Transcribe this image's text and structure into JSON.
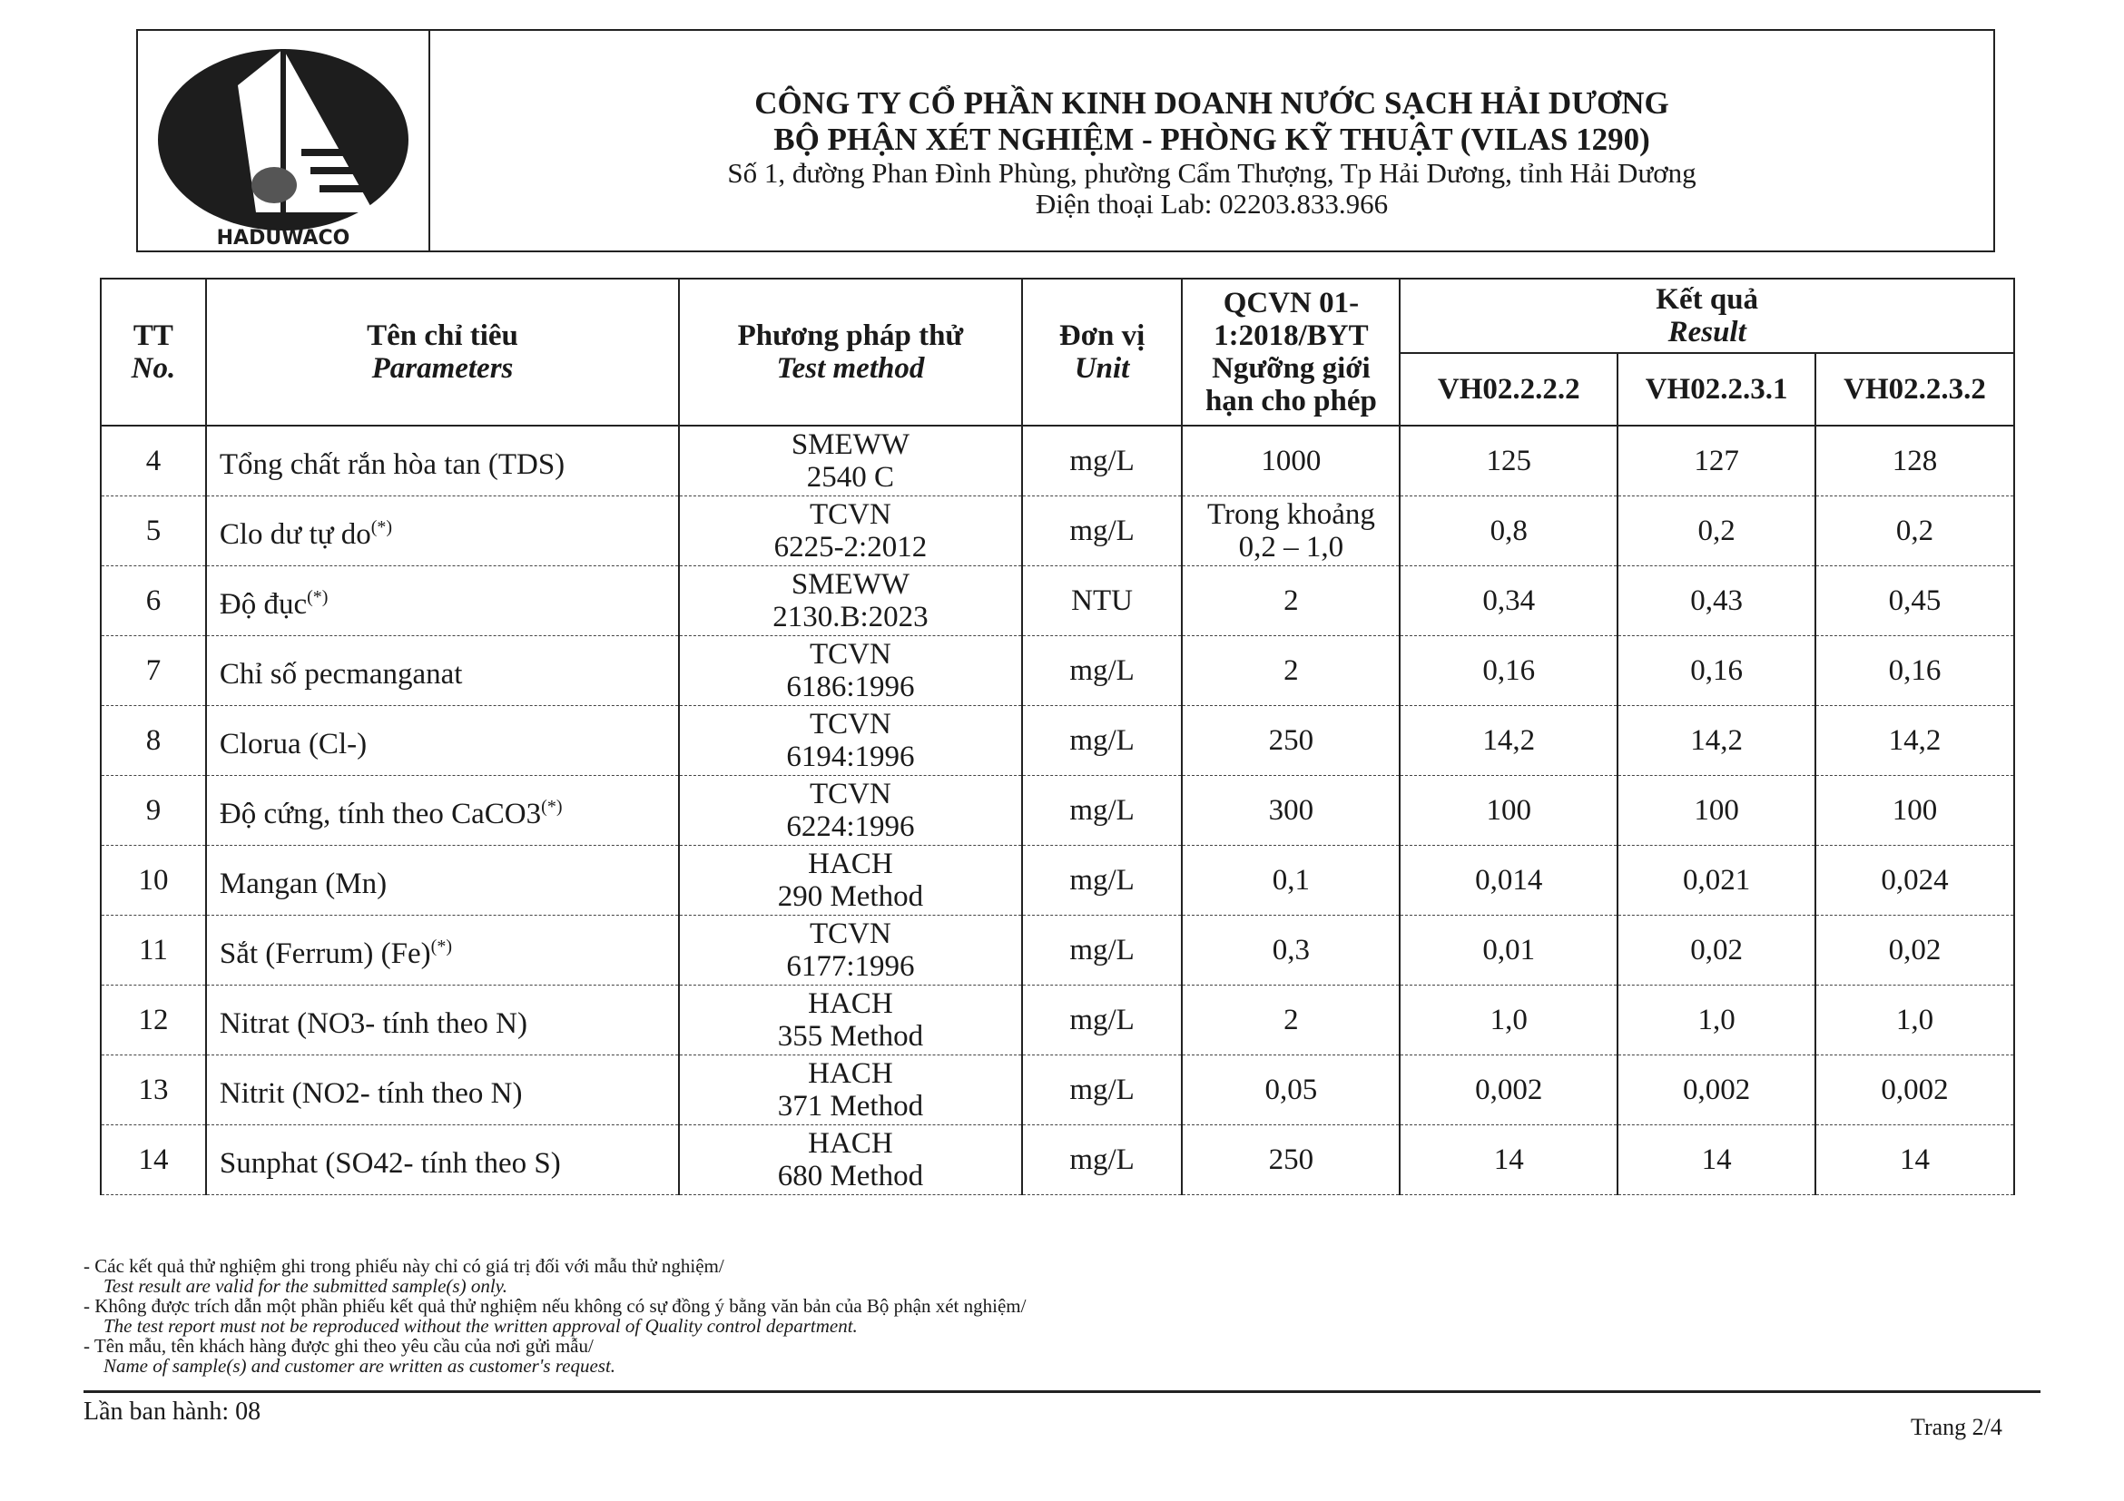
{
  "header": {
    "logo_text": "HADUWACO",
    "company": "CÔNG TY CỔ PHẦN KINH DOANH NƯỚC SẠCH HẢI DƯƠNG",
    "department": "BỘ PHẬN XÉT NGHIỆM - PHÒNG KỸ THUẬT (VILAS 1290)",
    "address": "Số 1, đường Phan Đình Phùng, phường Cẩm Thượng, Tp Hải Dương, tỉnh Hải Dương",
    "phone": "Điện thoại Lab: 02203.833.966"
  },
  "table": {
    "headers": {
      "tt": "TT",
      "tt_en": "No.",
      "param": "Tên chỉ tiêu",
      "param_en": "Parameters",
      "method": "Phương pháp thử",
      "method_en": "Test method",
      "unit": "Đơn vị",
      "unit_en": "Unit",
      "limit": "QCVN 01-1:2018/BYT",
      "limit2": "Ngưỡng giới hạn cho phép",
      "result": "Kết quả",
      "result_en": "Result",
      "samples": [
        "VH02.2.2.2",
        "VH02.2.3.1",
        "VH02.2.3.2"
      ]
    },
    "rows": [
      {
        "tt": "4",
        "param": "Tổng chất rắn hòa tan (TDS)",
        "sup": "",
        "m1": "SMEWW",
        "m2": "2540 C",
        "unit": "mg/L",
        "limit": "1000",
        "r1": "125",
        "r2": "127",
        "r3": "128"
      },
      {
        "tt": "5",
        "param": "Clo dư tự do",
        "sup": "(*)",
        "m1": "TCVN",
        "m2": "6225-2:2012",
        "unit": "mg/L",
        "limit": "Trong khoảng 0,2 – 1,0",
        "r1": "0,8",
        "r2": "0,2",
        "r3": "0,2"
      },
      {
        "tt": "6",
        "param": "Độ đục",
        "sup": "(*)",
        "m1": "SMEWW",
        "m2": "2130.B:2023",
        "unit": "NTU",
        "limit": "2",
        "r1": "0,34",
        "r2": "0,43",
        "r3": "0,45"
      },
      {
        "tt": "7",
        "param": "Chỉ số pecmanganat",
        "sup": "",
        "m1": "TCVN",
        "m2": "6186:1996",
        "unit": "mg/L",
        "limit": "2",
        "r1": "0,16",
        "r2": "0,16",
        "r3": "0,16"
      },
      {
        "tt": "8",
        "param": "Clorua (Cl-)",
        "sup": "",
        "m1": "TCVN",
        "m2": "6194:1996",
        "unit": "mg/L",
        "limit": "250",
        "r1": "14,2",
        "r2": "14,2",
        "r3": "14,2"
      },
      {
        "tt": "9",
        "param": "Độ cứng, tính theo CaCO3",
        "sup": "(*)",
        "m1": "TCVN",
        "m2": "6224:1996",
        "unit": "mg/L",
        "limit": "300",
        "r1": "100",
        "r2": "100",
        "r3": "100"
      },
      {
        "tt": "10",
        "param": "Mangan (Mn)",
        "sup": "",
        "m1": "HACH",
        "m2": "290 Method",
        "unit": "mg/L",
        "limit": "0,1",
        "r1": "0,014",
        "r2": "0,021",
        "r3": "0,024"
      },
      {
        "tt": "11",
        "param": "Sắt (Ferrum) (Fe)",
        "sup": "(*)",
        "m1": "TCVN",
        "m2": "6177:1996",
        "unit": "mg/L",
        "limit": "0,3",
        "r1": "0,01",
        "r2": "0,02",
        "r3": "0,02"
      },
      {
        "tt": "12",
        "param": "Nitrat (NO3- tính theo N)",
        "sup": "",
        "m1": "HACH",
        "m2": "355 Method",
        "unit": "mg/L",
        "limit": "2",
        "r1": "1,0",
        "r2": "1,0",
        "r3": "1,0"
      },
      {
        "tt": "13",
        "param": "Nitrit (NO2- tính theo N)",
        "sup": "",
        "m1": "HACH",
        "m2": "371 Method",
        "unit": "mg/L",
        "limit": "0,05",
        "r1": "0,002",
        "r2": "0,002",
        "r3": "0,002"
      },
      {
        "tt": "14",
        "param": "Sunphat (SO42- tính theo S)",
        "sup": "",
        "m1": "HACH",
        "m2": "680 Method",
        "unit": "mg/L",
        "limit": "250",
        "r1": "14",
        "r2": "14",
        "r3": "14"
      }
    ]
  },
  "notes": [
    {
      "vi": "- Các kết quả thử nghiệm ghi trong phiếu này chỉ có giá trị đối với mẫu thử nghiệm/",
      "en": "Test result are valid for the submitted sample(s) only."
    },
    {
      "vi": "- Không được trích dẫn một phần phiếu kết quả thử nghiệm nếu không có sự đồng ý bằng văn bản của Bộ phận xét nghiệm/",
      "en": "The test report must not be reproduced without the written approval of Quality control department."
    },
    {
      "vi": "- Tên mẫu, tên khách hàng được ghi theo yêu cầu của nơi gửi mẫu/",
      "en": "Name of sample(s) and customer are written as customer's request."
    }
  ],
  "footer": {
    "issue": "Lần ban hành: 08",
    "page": "Trang 2/4"
  }
}
